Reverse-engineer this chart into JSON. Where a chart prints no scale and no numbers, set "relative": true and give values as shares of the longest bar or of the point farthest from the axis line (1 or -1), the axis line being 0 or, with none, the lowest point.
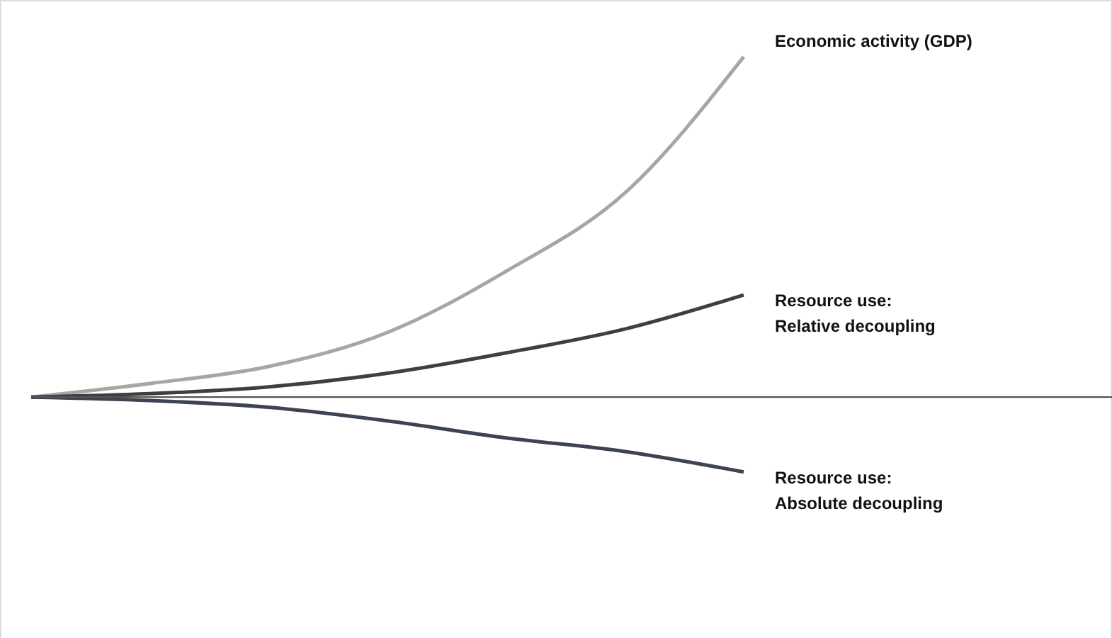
{
  "chart_data": {
    "type": "line",
    "relative": true,
    "tick_labels": false,
    "grid": false,
    "marker": "none",
    "line_style": "solid",
    "categories": [
      null,
      null,
      null,
      null,
      null,
      null,
      null
    ],
    "series": [
      {
        "name": "Economic activity (GDP)",
        "color": "#a6a6a6",
        "values": [
          0,
          0.04,
          0.09,
          0.19,
          0.37,
          0.6,
          1
        ]
      },
      {
        "name": "Resource use:\nRelative decoupling",
        "color": "#3f3f3f",
        "values": [
          0,
          0.01,
          0.03,
          0.07,
          0.13,
          0.2,
          0.3
        ]
      },
      {
        "name": "Resource use:\nAbsolute decoupling",
        "color": "#3c4352",
        "values": [
          0,
          -0.01,
          -0.03,
          -0.07,
          -0.12,
          -0.16,
          -0.22
        ]
      }
    ]
  }
}
